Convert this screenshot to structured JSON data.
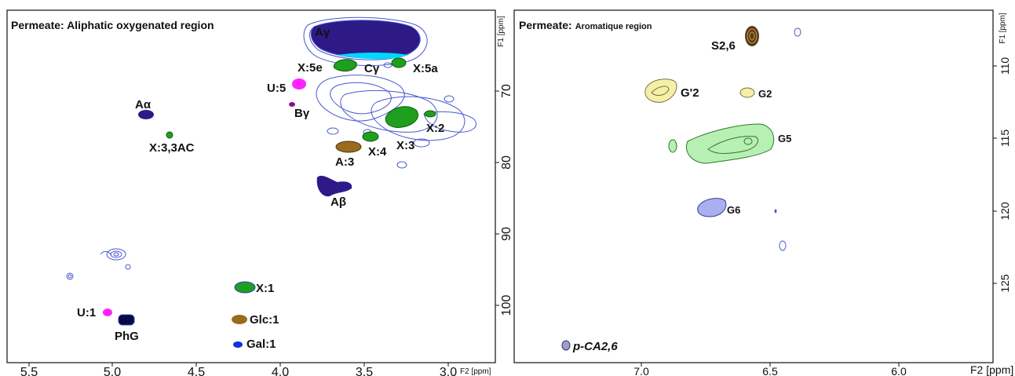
{
  "chart_data": [
    {
      "type": "scatter",
      "title": "Permeate: Aliphatic oxygenated region",
      "xlabel": "F2 [ppm]",
      "ylabel": "F1 [ppm]",
      "xlim": [
        5.6,
        2.9
      ],
      "ylim": [
        108,
        59
      ],
      "x_reversed": true,
      "y_reversed": true,
      "x_ticks": [
        "5.5",
        "5.0",
        "4.5",
        "4.0",
        "3.5",
        "3.0"
      ],
      "y_ticks": [
        "70",
        "80",
        "90",
        "100"
      ],
      "colors": {
        "arabinose": "#2e1a87",
        "xylose": "#1ea01e",
        "uronic": "#ff22ff",
        "glucose": "#9a6a1e",
        "galactose": "#1030e0",
        "cross": "#00d8ff",
        "unassigned": "#4a58d0"
      },
      "peaks": [
        {
          "label": "Aγ",
          "x": 3.65,
          "y": 61.5,
          "group": "arabinose"
        },
        {
          "label": "Cγ",
          "x": 3.55,
          "y": 64.5,
          "group": "cross"
        },
        {
          "label": "X:5e",
          "x": 3.68,
          "y": 65.0,
          "group": "xylose"
        },
        {
          "label": "X:5a",
          "x": 3.32,
          "y": 65.0,
          "group": "xylose"
        },
        {
          "label": "U:5",
          "x": 3.92,
          "y": 68.0,
          "group": "uronic"
        },
        {
          "label": "Bγ",
          "x": 3.95,
          "y": 71.5,
          "group": "uronic"
        },
        {
          "label": "Aα",
          "x": 4.8,
          "y": 72.8,
          "group": "arabinose"
        },
        {
          "label": "X:2",
          "x": 3.22,
          "y": 72.5,
          "group": "xylose"
        },
        {
          "label": "X:3",
          "x": 3.38,
          "y": 73.5,
          "group": "xylose"
        },
        {
          "label": "X:3,3AC",
          "x": 4.63,
          "y": 75.5,
          "group": "xylose"
        },
        {
          "label": "X:4",
          "x": 3.52,
          "y": 75.5,
          "group": "xylose"
        },
        {
          "label": "A:3",
          "x": 3.65,
          "y": 77.0,
          "group": "glucose"
        },
        {
          "label": "Aβ",
          "x": 3.73,
          "y": 83.0,
          "group": "arabinose"
        },
        {
          "label": "X:1",
          "x": 4.22,
          "y": 97.5,
          "group": "xylose"
        },
        {
          "label": "U:1",
          "x": 5.01,
          "y": 101.0,
          "group": "uronic"
        },
        {
          "label": "PhG",
          "x": 4.89,
          "y": 102.2,
          "group": "arabinose"
        },
        {
          "label": "Glc:1",
          "x": 4.26,
          "y": 102.0,
          "group": "glucose"
        },
        {
          "label": "Gal:1",
          "x": 4.27,
          "y": 106.0,
          "group": "galactose"
        }
      ]
    },
    {
      "type": "scatter",
      "title": "Permeate:",
      "title_suffix": "Aromatique region",
      "xlabel": "F2 [ppm]",
      "ylabel": "F1 [ppm]",
      "xlim": [
        7.46,
        5.54
      ],
      "ylim": [
        130,
        106
      ],
      "x_reversed": true,
      "y_reversed": true,
      "x_ticks": [
        "7.0",
        "6.5",
        "6.0"
      ],
      "y_ticks": [
        "110",
        "115",
        "120",
        "125"
      ],
      "colors": {
        "syringyl": "#5a3a10",
        "guaiacyl_prime": "#f5f0a8",
        "guaiacyl5": "#b8f0b4",
        "guaiacyl6": "#a8b0f0",
        "coumarate": "#9aa0c8"
      },
      "peaks": [
        {
          "label": "S2,6",
          "x": 6.32,
          "y": 107.2,
          "group": "syringyl"
        },
        {
          "label": "G'2",
          "x": 6.93,
          "y": 111.2,
          "group": "guaiacyl_prime"
        },
        {
          "label": "G2",
          "x": 6.6,
          "y": 111.2,
          "group": "guaiacyl_prime"
        },
        {
          "label": "G5",
          "x": 6.71,
          "y": 115.6,
          "group": "guaiacyl5"
        },
        {
          "label": "G6",
          "x": 6.71,
          "y": 119.9,
          "group": "guaiacyl6"
        },
        {
          "label": "p-CA2,6",
          "x": 7.28,
          "y": 128.7,
          "group": "coumarate"
        }
      ]
    }
  ]
}
